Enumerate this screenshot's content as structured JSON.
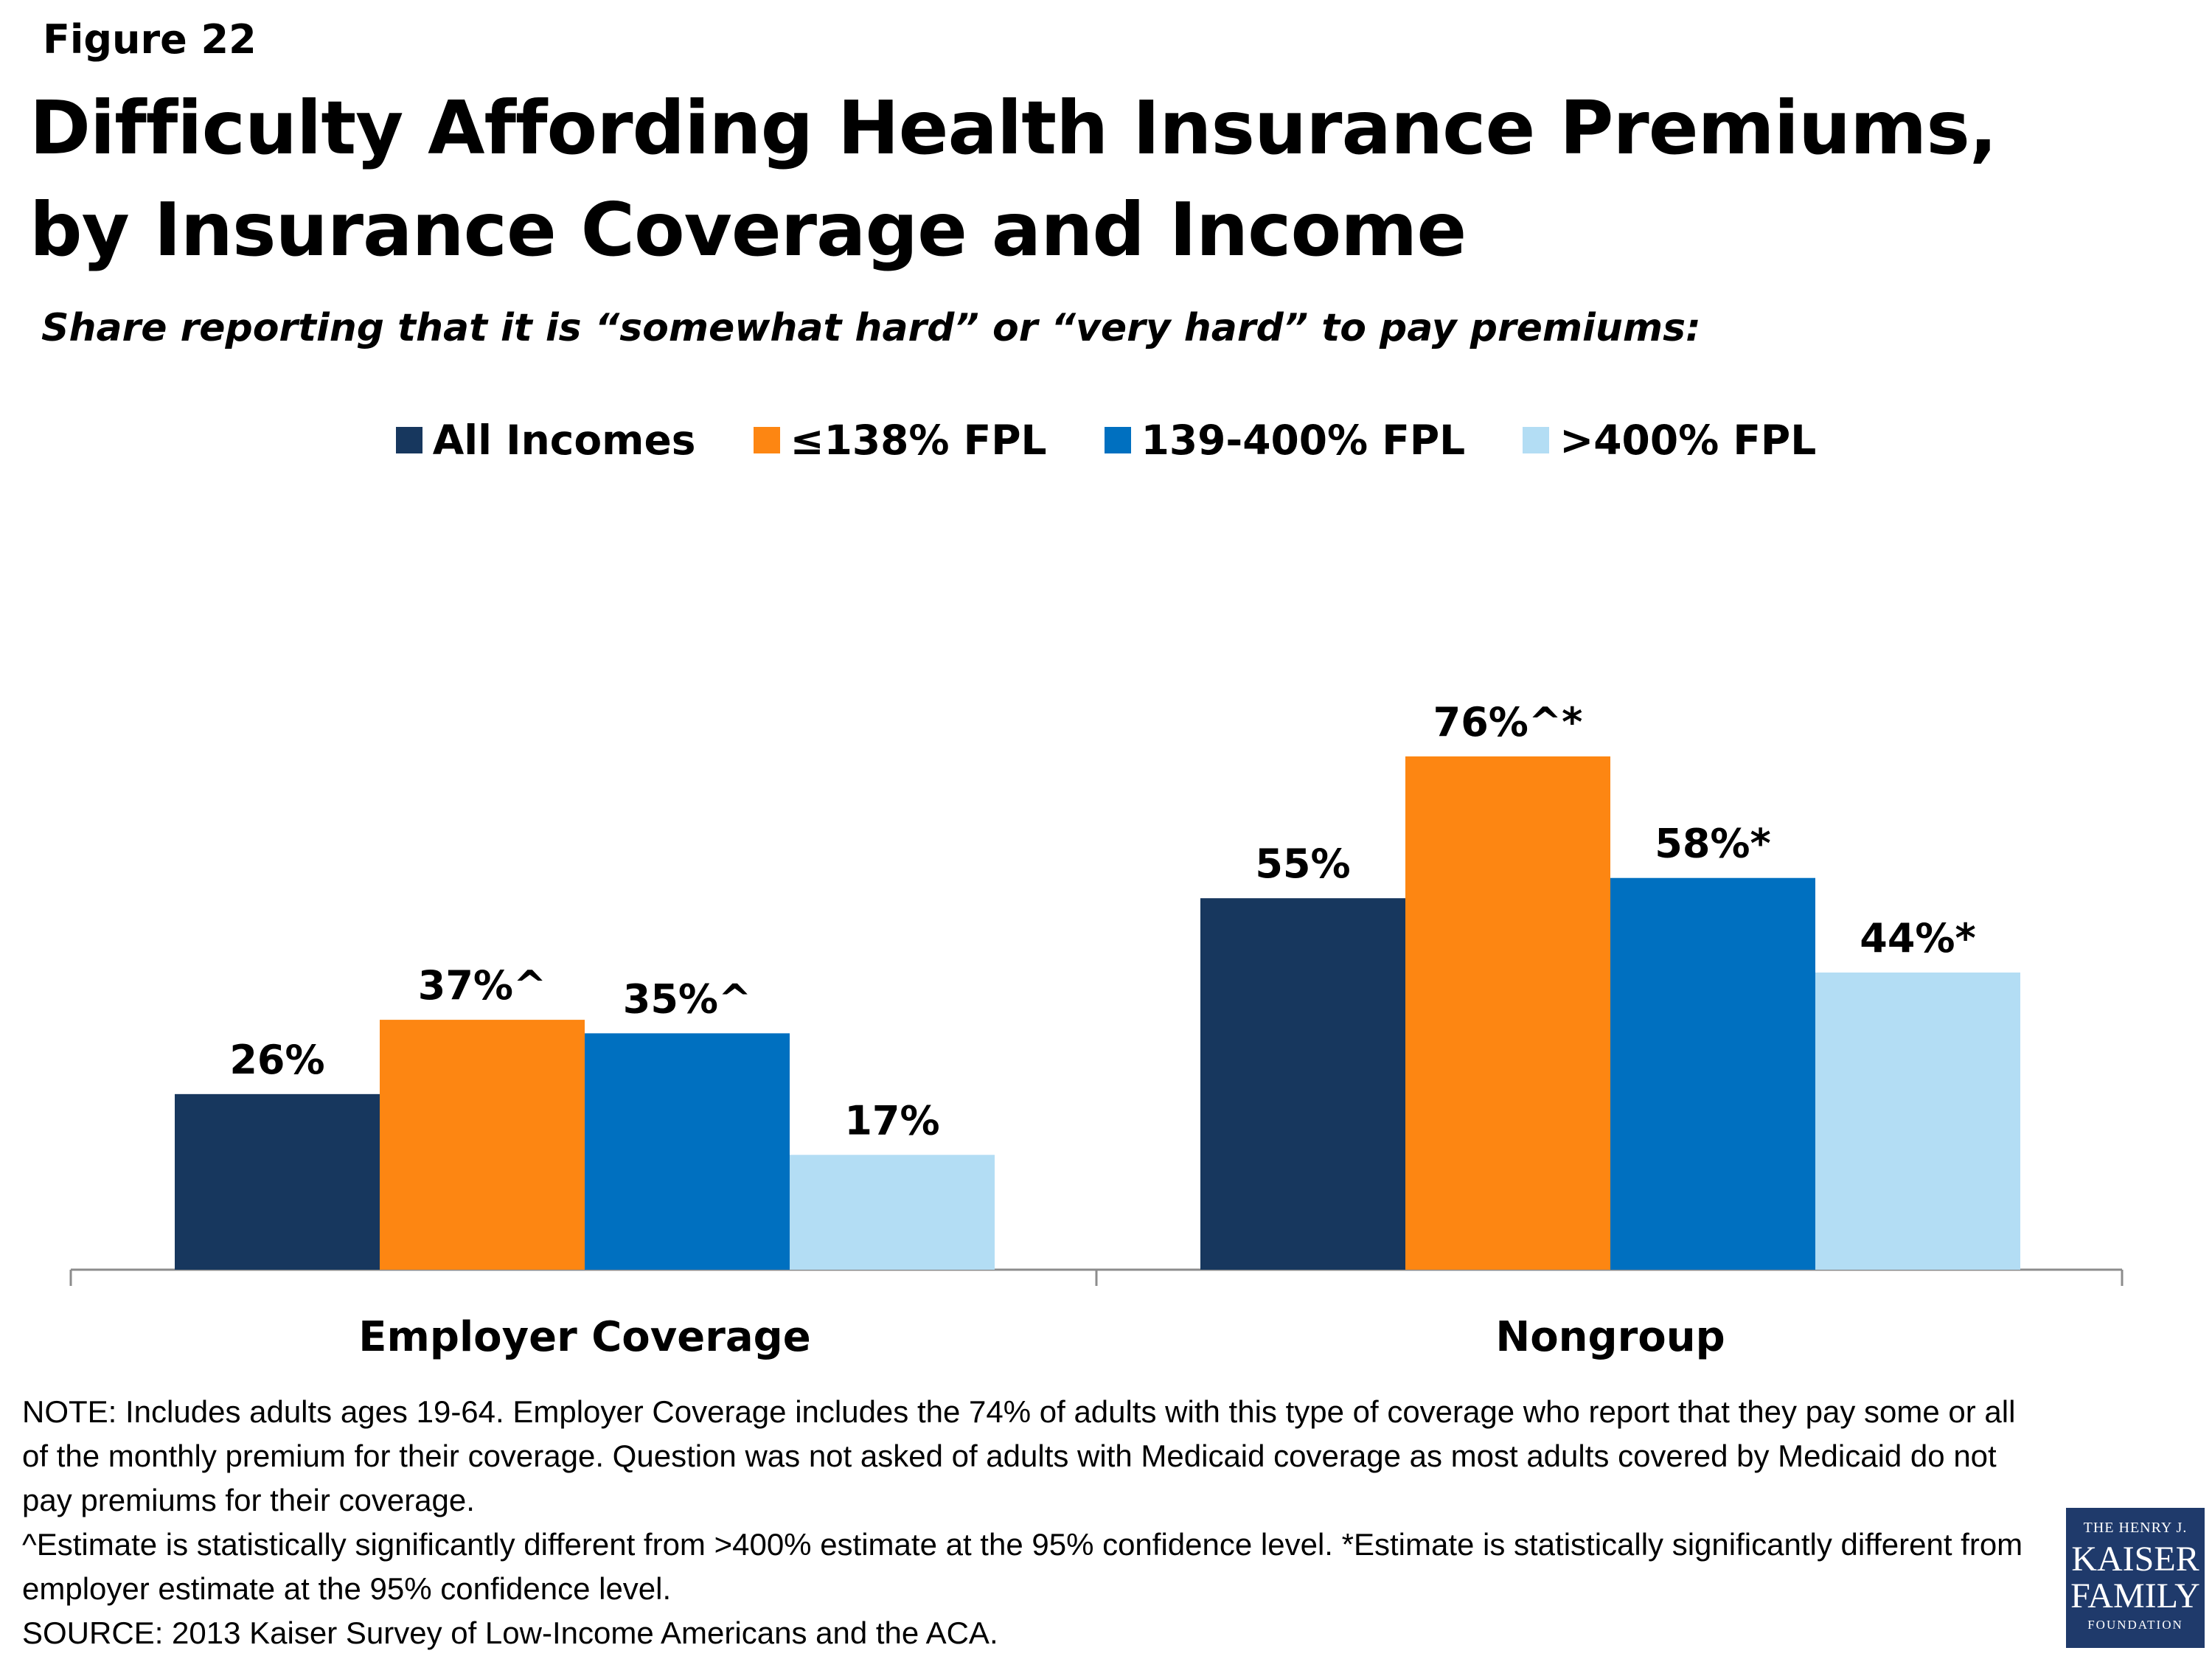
{
  "figure_label": "Figure 22",
  "chart_data": {
    "type": "bar",
    "title": "Difficulty Affording Health Insurance Premiums, by Insurance Coverage and  Income",
    "subtitle": "Share reporting that it is “somewhat hard” or “very hard” to pay premiums:",
    "categories": [
      "Employer Coverage",
      "Nongroup"
    ],
    "series": [
      {
        "name": "All Incomes",
        "color": "#17375e",
        "values": [
          26,
          55
        ],
        "labels": [
          "26%",
          "55%"
        ]
      },
      {
        "name": "≤138% FPL",
        "color": "#fd8612",
        "values": [
          37,
          76
        ],
        "labels": [
          "37%^",
          "76%^*"
        ]
      },
      {
        "name": "139-400% FPL",
        "color": "#0070c0",
        "values": [
          35,
          58
        ],
        "labels": [
          "35%^",
          "58%*"
        ]
      },
      {
        "name": ">400% FPL",
        "color": "#b3ddf4",
        "values": [
          17,
          44
        ],
        "labels": [
          "17%",
          "44%*"
        ]
      }
    ],
    "ylim": [
      0,
      100
    ],
    "legend_position": "top-center",
    "grid": false
  },
  "notes": [
    "NOTE: Includes adults ages 19-64. Employer Coverage includes the 74% of adults with this type of coverage who report that they pay some or all of the monthly premium for their coverage. Question was not asked of adults with Medicaid coverage as most adults covered by Medicaid do not pay premiums for their coverage.",
    "^Estimate is statistically significantly different from >400% estimate at the 95% confidence level. *Estimate is statistically significantly different from employer estimate at the 95% confidence level.",
    "SOURCE: 2013 Kaiser Survey of Low-Income Americans and the ACA."
  ],
  "logo": {
    "line1": "THE HENRY J.",
    "line2": "KAISER",
    "line3": "FAMILY",
    "line4": "FOUNDATION"
  }
}
